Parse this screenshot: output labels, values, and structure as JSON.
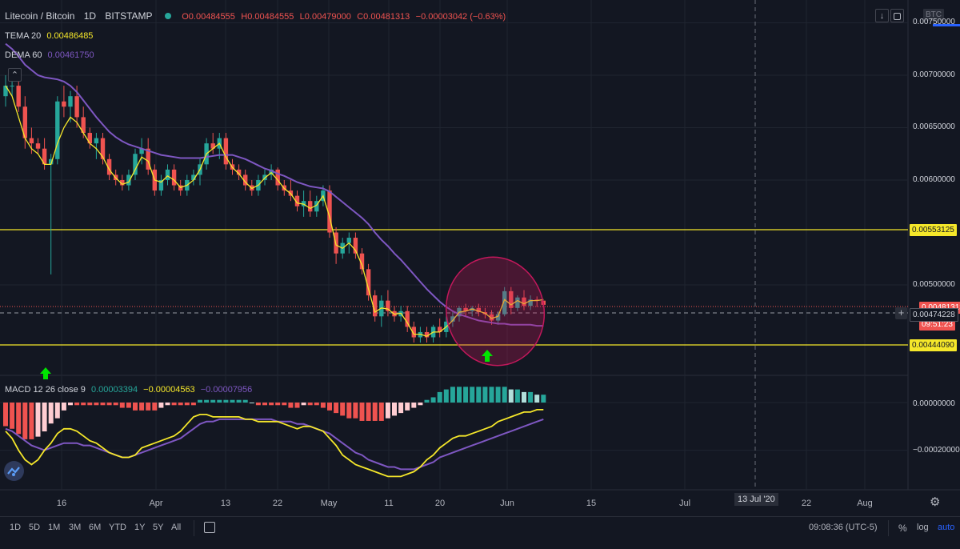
{
  "header": {
    "symbol": "Litecoin / Bitcoin",
    "interval": "1D",
    "exchange": "BITSTAMP",
    "o": "O0.00484555",
    "h": "H0.00484555",
    "l": "L0.00479000",
    "c": "C0.00481313",
    "change": "−0.00003042 (−0.63%)",
    "currency": "BTC",
    "scroll_icon": "arrow-down-icon",
    "fullscreen_icon": "fullscreen-icon",
    "collapse_icon": "chevron-up-icon"
  },
  "indicators": {
    "tema": {
      "name": "TEMA 20",
      "value": "0.00486485",
      "color": "#f5e72a"
    },
    "dema": {
      "name": "DEMA 60",
      "value": "0.00461750",
      "color": "#7e57c2"
    },
    "macd": {
      "name": "MACD 12 26 close 9",
      "v1": "0.00003394",
      "v2": "−0.00004563",
      "v3": "−0.00007956"
    }
  },
  "price_axis": {
    "labels": [
      "0.00750000",
      "0.00700000",
      "0.00650000",
      "0.00600000",
      "0.00500000"
    ],
    "hline_high": "0.00553125",
    "hline_low": "0.00444090",
    "last_price": "0.00481313",
    "crosshair_price": "0.00474228",
    "countdown": "09:51:23",
    "macd_labels": [
      "0.00000000",
      "−0.00020000"
    ]
  },
  "time_axis": {
    "labels": [
      "16",
      "Apr",
      "13",
      "22",
      "May",
      "11",
      "20",
      "Jun",
      "15",
      "Jul",
      "22",
      "Aug"
    ],
    "crosshair_date": "13 Jul '20"
  },
  "bottom": {
    "timeframes": [
      "1D",
      "5D",
      "1M",
      "3M",
      "6M",
      "YTD",
      "1Y",
      "5Y",
      "All"
    ],
    "compare_icon": "calendar-range-icon",
    "clock": "09:08:36 (UTC-5)",
    "percent": "%",
    "log": "log",
    "auto": "auto",
    "settings_icon": "gear-icon"
  },
  "colors": {
    "up": "#26a69a",
    "down": "#ef5350",
    "hline": "#f5e72a",
    "ellipse": "#c2185b",
    "arrow": "#00e400",
    "auto": "#2962ff"
  },
  "chart_data": {
    "type": "candlestick",
    "title": "Litecoin / Bitcoin 1D BITSTAMP",
    "y_range": [
      0.0041,
      0.0077
    ],
    "candles": [
      [
        0.0068,
        0.007,
        0.0067,
        0.0069
      ],
      [
        0.0069,
        0.007,
        0.0068,
        0.0069
      ],
      [
        0.0069,
        0.007,
        0.00665,
        0.0067
      ],
      [
        0.0067,
        0.0068,
        0.0063,
        0.0064
      ],
      [
        0.0064,
        0.0065,
        0.00625,
        0.00635
      ],
      [
        0.00635,
        0.0064,
        0.00625,
        0.0063
      ],
      [
        0.0063,
        0.0064,
        0.0061,
        0.00615
      ],
      [
        0.00615,
        0.00625,
        0.0051,
        0.0062
      ],
      [
        0.0062,
        0.0068,
        0.00615,
        0.00675
      ],
      [
        0.00675,
        0.0069,
        0.0066,
        0.0067
      ],
      [
        0.0067,
        0.00685,
        0.00655,
        0.0068
      ],
      [
        0.0068,
        0.0069,
        0.0065,
        0.0066
      ],
      [
        0.0066,
        0.0067,
        0.0064,
        0.00645
      ],
      [
        0.00645,
        0.0065,
        0.0063,
        0.00635
      ],
      [
        0.00635,
        0.00645,
        0.0062,
        0.0064
      ],
      [
        0.0064,
        0.00645,
        0.00615,
        0.0062
      ],
      [
        0.0062,
        0.00625,
        0.006,
        0.00605
      ],
      [
        0.00605,
        0.0061,
        0.00595,
        0.006
      ],
      [
        0.006,
        0.00605,
        0.0059,
        0.00595
      ],
      [
        0.00595,
        0.0061,
        0.0059,
        0.00605
      ],
      [
        0.00605,
        0.0063,
        0.006,
        0.00625
      ],
      [
        0.00625,
        0.0064,
        0.00615,
        0.0063
      ],
      [
        0.0063,
        0.0064,
        0.00605,
        0.0061
      ],
      [
        0.0061,
        0.00615,
        0.00585,
        0.0059
      ],
      [
        0.0059,
        0.00605,
        0.00585,
        0.006
      ],
      [
        0.006,
        0.00615,
        0.00595,
        0.0061
      ],
      [
        0.0061,
        0.00615,
        0.0059,
        0.00595
      ],
      [
        0.00595,
        0.006,
        0.00585,
        0.0059
      ],
      [
        0.0059,
        0.00605,
        0.00585,
        0.006
      ],
      [
        0.006,
        0.0061,
        0.00595,
        0.00605
      ],
      [
        0.00605,
        0.0062,
        0.00595,
        0.00615
      ],
      [
        0.00615,
        0.0064,
        0.0061,
        0.00635
      ],
      [
        0.00635,
        0.00645,
        0.00625,
        0.0063
      ],
      [
        0.0063,
        0.00645,
        0.0062,
        0.0064
      ],
      [
        0.0064,
        0.00645,
        0.0061,
        0.00615
      ],
      [
        0.00615,
        0.0062,
        0.00605,
        0.0061
      ],
      [
        0.0061,
        0.00615,
        0.006,
        0.00605
      ],
      [
        0.00605,
        0.0061,
        0.0059,
        0.00595
      ],
      [
        0.00595,
        0.006,
        0.00585,
        0.0059
      ],
      [
        0.0059,
        0.00605,
        0.00585,
        0.006
      ],
      [
        0.006,
        0.0061,
        0.00595,
        0.00605
      ],
      [
        0.00605,
        0.00615,
        0.006,
        0.0061
      ],
      [
        0.0061,
        0.00612,
        0.0059,
        0.00595
      ],
      [
        0.00595,
        0.006,
        0.00585,
        0.0059
      ],
      [
        0.0059,
        0.006,
        0.0058,
        0.00585
      ],
      [
        0.00585,
        0.0059,
        0.0057,
        0.00575
      ],
      [
        0.00575,
        0.0059,
        0.00565,
        0.0058
      ],
      [
        0.0058,
        0.0059,
        0.00565,
        0.0057
      ],
      [
        0.0057,
        0.00585,
        0.00565,
        0.0058
      ],
      [
        0.0058,
        0.00595,
        0.00575,
        0.0059
      ],
      [
        0.0059,
        0.00595,
        0.00545,
        0.0055
      ],
      [
        0.0055,
        0.00555,
        0.0052,
        0.0053
      ],
      [
        0.0053,
        0.00545,
        0.00525,
        0.0054
      ],
      [
        0.0054,
        0.0055,
        0.0053,
        0.00545
      ],
      [
        0.00545,
        0.0055,
        0.00525,
        0.0053
      ],
      [
        0.0053,
        0.00535,
        0.0051,
        0.00515
      ],
      [
        0.00515,
        0.0052,
        0.00485,
        0.0049
      ],
      [
        0.0049,
        0.00495,
        0.00465,
        0.0047
      ],
      [
        0.0047,
        0.0049,
        0.0046,
        0.00485
      ],
      [
        0.00485,
        0.00495,
        0.0047,
        0.00475
      ],
      [
        0.00475,
        0.0048,
        0.00465,
        0.0047
      ],
      [
        0.0047,
        0.0048,
        0.00465,
        0.00475
      ],
      [
        0.00475,
        0.0048,
        0.00455,
        0.0046
      ],
      [
        0.0046,
        0.00465,
        0.00445,
        0.0045
      ],
      [
        0.0045,
        0.0046,
        0.00445,
        0.00455
      ],
      [
        0.00455,
        0.0046,
        0.00445,
        0.0045
      ],
      [
        0.0045,
        0.00462,
        0.00445,
        0.0046
      ],
      [
        0.0046,
        0.00468,
        0.0045,
        0.00455
      ],
      [
        0.00455,
        0.0047,
        0.0045,
        0.00465
      ],
      [
        0.00465,
        0.00475,
        0.0046,
        0.0047
      ],
      [
        0.0047,
        0.0048,
        0.00465,
        0.00478
      ],
      [
        0.00478,
        0.00482,
        0.0047,
        0.00475
      ],
      [
        0.00475,
        0.0048,
        0.0047,
        0.00478
      ],
      [
        0.00478,
        0.00482,
        0.0047,
        0.00474
      ],
      [
        0.00474,
        0.00478,
        0.00468,
        0.00472
      ],
      [
        0.00472,
        0.00476,
        0.00462,
        0.00466
      ],
      [
        0.00466,
        0.00475,
        0.00462,
        0.00472
      ],
      [
        0.00472,
        0.00498,
        0.0047,
        0.00494
      ],
      [
        0.00494,
        0.00498,
        0.00472,
        0.00478
      ],
      [
        0.00478,
        0.0049,
        0.00475,
        0.00488
      ],
      [
        0.00488,
        0.00495,
        0.00476,
        0.0048
      ],
      [
        0.0048,
        0.0049,
        0.00476,
        0.00486
      ],
      [
        0.00486,
        0.00489,
        0.00479,
        0.00485
      ],
      [
        0.00485,
        0.00485,
        0.00479,
        0.00481
      ]
    ],
    "macd_hist": [
      -9e-05,
      -0.0001,
      -0.00012,
      -0.00014,
      -0.00014,
      -0.00013,
      -0.00011,
      -8e-05,
      -6e-05,
      -3e-05,
      -1e-05,
      -1e-05,
      -1e-05,
      -1e-05,
      -1e-05,
      -1e-05,
      -1e-05,
      -1e-05,
      -2e-05,
      -2e-05,
      -3e-05,
      -3e-05,
      -3e-05,
      -3e-05,
      -2e-05,
      -1e-05,
      -1e-05,
      -1e-05,
      -1e-05,
      -1e-05,
      1e-05,
      1e-05,
      1e-05,
      1e-05,
      1e-05,
      1e-05,
      1e-05,
      1e-05,
      0.0,
      -1e-05,
      -1e-05,
      -1e-05,
      -1e-05,
      -1e-05,
      -2e-05,
      -2e-05,
      -1e-05,
      -1e-05,
      -1e-05,
      -2e-05,
      -3e-05,
      -4e-05,
      -5e-05,
      -6e-05,
      -6e-05,
      -7e-05,
      -7e-05,
      -7e-05,
      -7e-05,
      -6e-05,
      -5e-05,
      -4e-05,
      -3e-05,
      -2e-05,
      -1e-05,
      1e-05,
      2e-05,
      4e-05,
      5e-05,
      6e-05,
      6e-05,
      6e-05,
      6e-05,
      6e-05,
      6e-05,
      6e-05,
      6e-05,
      6e-05,
      5e-05,
      5e-05,
      4e-05,
      4e-05,
      3e-05,
      3e-05
    ],
    "macd_line": [
      -0.00012,
      -0.00015,
      -0.0002,
      -0.00024,
      -0.00026,
      -0.00024,
      -0.0002,
      -0.00017,
      -0.00013,
      -0.00011,
      -0.00011,
      -0.00012,
      -0.00014,
      -0.00016,
      -0.00017,
      -0.00019,
      -0.00021,
      -0.00022,
      -0.00023,
      -0.00023,
      -0.00022,
      -0.00019,
      -0.00018,
      -0.00017,
      -0.00016,
      -0.00015,
      -0.00014,
      -0.00012,
      -9e-05,
      -6e-05,
      -5e-05,
      -5e-05,
      -6e-05,
      -6e-05,
      -6e-05,
      -6e-05,
      -6e-05,
      -7e-05,
      -7e-05,
      -8e-05,
      -8e-05,
      -8e-05,
      -8e-05,
      -9e-05,
      -0.0001,
      -0.00011,
      -0.0001,
      -0.0001,
      -0.00011,
      -0.00012,
      -0.00015,
      -0.00018,
      -0.00022,
      -0.00024,
      -0.00026,
      -0.00027,
      -0.00028,
      -0.00029,
      -0.0003,
      -0.00031,
      -0.00031,
      -0.00031,
      -0.0003,
      -0.00029,
      -0.00027,
      -0.00024,
      -0.00022,
      -0.00019,
      -0.00017,
      -0.00015,
      -0.00014,
      -0.00014,
      -0.00013,
      -0.00012,
      -0.00011,
      -0.0001,
      -8e-05,
      -7e-05,
      -6e-05,
      -5e-05,
      -4e-05,
      -4e-05,
      -3e-05,
      -3e-05
    ],
    "signal_line": [
      -0.00011,
      -0.00012,
      -0.00014,
      -0.00016,
      -0.00018,
      -0.00019,
      -0.0002,
      -0.00019,
      -0.00018,
      -0.00017,
      -0.00017,
      -0.00017,
      -0.00018,
      -0.00018,
      -0.00019,
      -0.0002,
      -0.00021,
      -0.00022,
      -0.00023,
      -0.00023,
      -0.00022,
      -0.00021,
      -0.0002,
      -0.00019,
      -0.00018,
      -0.00017,
      -0.00016,
      -0.00015,
      -0.00013,
      -0.00011,
      -9e-05,
      -8e-05,
      -8e-05,
      -7e-05,
      -7e-05,
      -7e-05,
      -7e-05,
      -7e-05,
      -7e-05,
      -7e-05,
      -7e-05,
      -7e-05,
      -8e-05,
      -8e-05,
      -8e-05,
      -9e-05,
      -9e-05,
      -0.0001,
      -0.00011,
      -0.00012,
      -0.00013,
      -0.00015,
      -0.00017,
      -0.00019,
      -0.00021,
      -0.00022,
      -0.00024,
      -0.00025,
      -0.00026,
      -0.00027,
      -0.00027,
      -0.00028,
      -0.00028,
      -0.00028,
      -0.00027,
      -0.00026,
      -0.00025,
      -0.00023,
      -0.00022,
      -0.00021,
      -0.0002,
      -0.00019,
      -0.00018,
      -0.00017,
      -0.00016,
      -0.00015,
      -0.00014,
      -0.00013,
      -0.00012,
      -0.00011,
      -0.0001,
      -9e-05,
      -8e-05,
      -7e-05
    ],
    "tema": [
      0.0069,
      0.0068,
      0.0066,
      0.0064,
      0.0063,
      0.00625,
      0.00615,
      0.00615,
      0.00635,
      0.0065,
      0.0066,
      0.00655,
      0.00645,
      0.00635,
      0.0063,
      0.00622,
      0.0061,
      0.00602,
      0.00596,
      0.00598,
      0.0061,
      0.00622,
      0.00618,
      0.006,
      0.00598,
      0.00604,
      0.006,
      0.00593,
      0.00595,
      0.006,
      0.0061,
      0.00625,
      0.0063,
      0.00635,
      0.00622,
      0.00612,
      0.00606,
      0.00598,
      0.00592,
      0.00595,
      0.00602,
      0.00607,
      0.006,
      0.00592,
      0.00587,
      0.00578,
      0.00577,
      0.00573,
      0.00576,
      0.00585,
      0.00565,
      0.00538,
      0.00535,
      0.0054,
      0.00533,
      0.00519,
      0.00496,
      0.00474,
      0.00478,
      0.00477,
      0.00472,
      0.00473,
      0.00464,
      0.00453,
      0.00453,
      0.00451,
      0.00455,
      0.00455,
      0.0046,
      0.00466,
      0.00474,
      0.00475,
      0.00477,
      0.00475,
      0.00473,
      0.00468,
      0.0047,
      0.00486,
      0.00481,
      0.00485,
      0.00482,
      0.00485,
      0.00485,
      0.00486
    ],
    "dema": [
      0.0073,
      0.00725,
      0.00718,
      0.0071,
      0.00705,
      0.007,
      0.00698,
      0.00697,
      0.00696,
      0.00694,
      0.0069,
      0.00684,
      0.00676,
      0.00668,
      0.0066,
      0.00653,
      0.00646,
      0.00641,
      0.00637,
      0.00634,
      0.00632,
      0.0063,
      0.00628,
      0.00626,
      0.00624,
      0.00623,
      0.00622,
      0.00621,
      0.00621,
      0.00621,
      0.00621,
      0.00622,
      0.00623,
      0.00624,
      0.00624,
      0.00624,
      0.00622,
      0.0062,
      0.00617,
      0.00614,
      0.00611,
      0.00609,
      0.00606,
      0.00604,
      0.00601,
      0.00598,
      0.00596,
      0.00594,
      0.00593,
      0.00592,
      0.00589,
      0.00584,
      0.00579,
      0.00574,
      0.00569,
      0.00564,
      0.00558,
      0.0055,
      0.00543,
      0.00537,
      0.0053,
      0.00524,
      0.00517,
      0.0051,
      0.00503,
      0.00496,
      0.0049,
      0.00484,
      0.00479,
      0.00475,
      0.00472,
      0.0047,
      0.00468,
      0.00466,
      0.00465,
      0.00464,
      0.00463,
      0.00463,
      0.00462,
      0.00462,
      0.00462,
      0.00462,
      0.00461,
      0.00461
    ]
  }
}
